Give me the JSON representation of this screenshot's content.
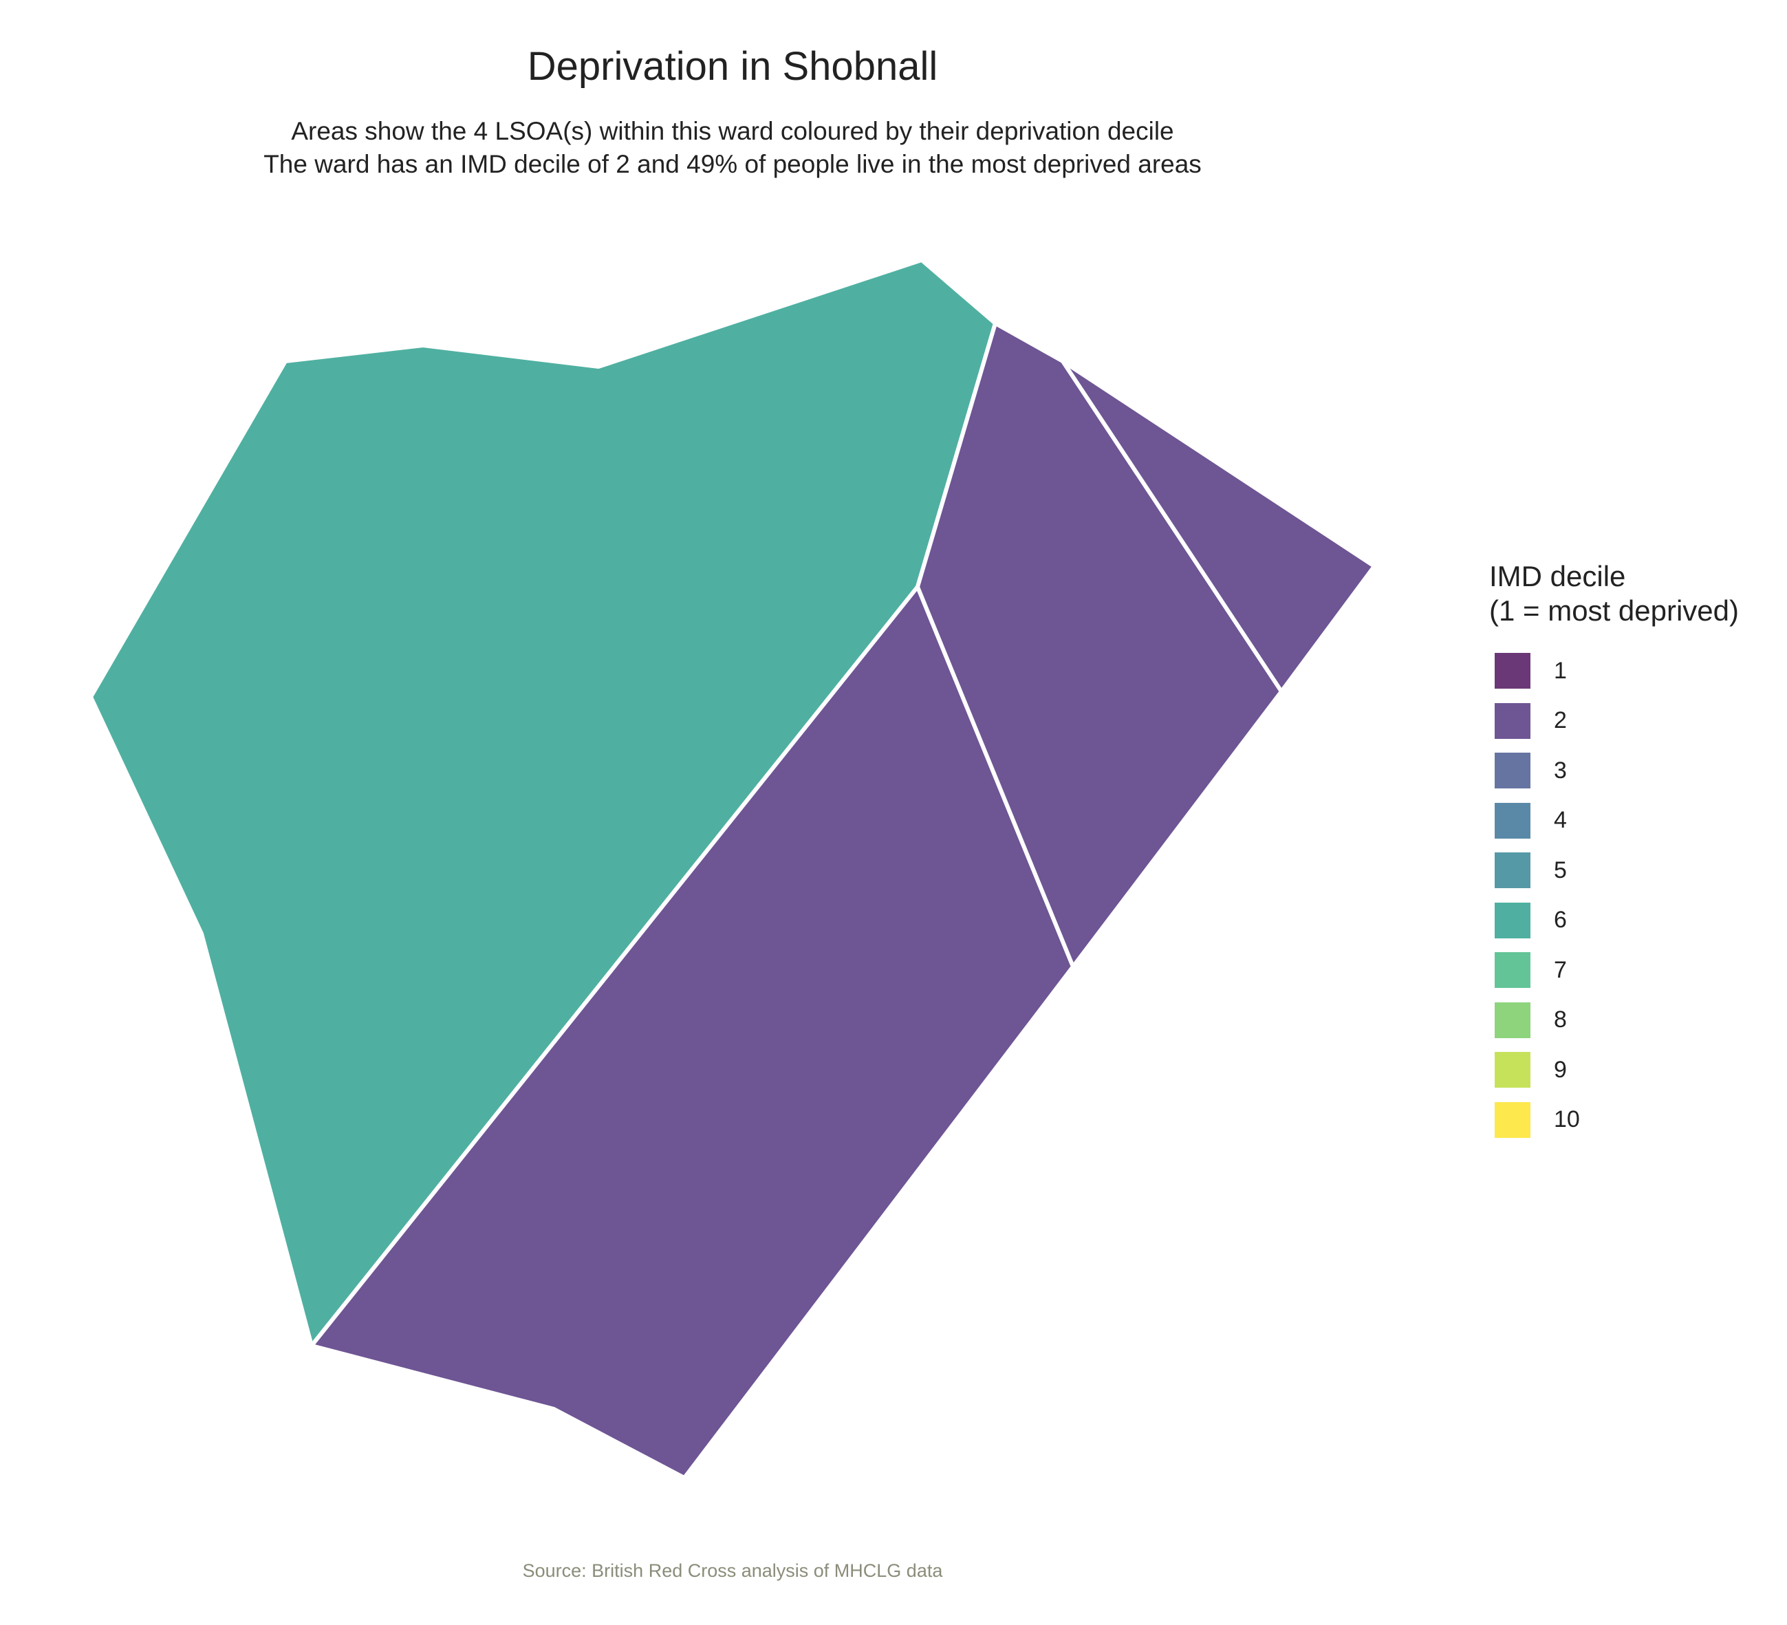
{
  "title": "Deprivation in Shobnall",
  "subtitle": [
    "Areas show the 4 LSOA(s) within this ward coloured by their deprivation decile",
    "The ward has an IMD decile of 2 and 49% of people live in the most deprived areas"
  ],
  "legend": {
    "title": [
      "IMD decile",
      "(1 = most deprived)"
    ],
    "items": [
      {
        "label": "1",
        "color": "#6b3877"
      },
      {
        "label": "2",
        "color": "#6e5594"
      },
      {
        "label": "3",
        "color": "#6674a2"
      },
      {
        "label": "4",
        "color": "#5a89a7"
      },
      {
        "label": "5",
        "color": "#5599a6"
      },
      {
        "label": "6",
        "color": "#4fb0a1"
      },
      {
        "label": "7",
        "color": "#63c597"
      },
      {
        "label": "8",
        "color": "#8dd47c"
      },
      {
        "label": "9",
        "color": "#c6e25b"
      },
      {
        "label": "10",
        "color": "#fde84e"
      }
    ]
  },
  "areas": [
    {
      "id": "lsoa-west",
      "imd_decile": 6,
      "color": "#4fb0a1"
    },
    {
      "id": "lsoa-south",
      "imd_decile": 2,
      "color": "#6e5594"
    },
    {
      "id": "lsoa-middle-east",
      "imd_decile": 2,
      "color": "#6e5594"
    },
    {
      "id": "lsoa-far-east",
      "imd_decile": 2,
      "color": "#6e5594"
    }
  ],
  "caption": "Source: British Red Cross analysis of MHCLG data"
}
